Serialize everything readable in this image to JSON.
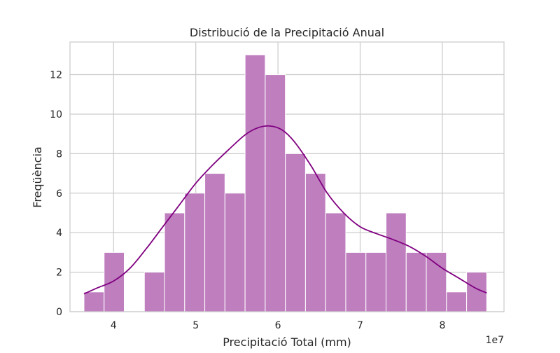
{
  "chart_data": {
    "type": "bar",
    "title": "Distribució de la Precipitació Anual",
    "xlabel": "Precipitació Total (mm)",
    "ylabel": "Freqüència",
    "x_offset_label": "1e7",
    "xlim": [
      3.47,
      8.75
    ],
    "ylim": [
      0,
      13.65
    ],
    "x_ticks": [
      4,
      5,
      6,
      7,
      8
    ],
    "x_tick_labels": [
      "4",
      "5",
      "6",
      "7",
      "8"
    ],
    "y_ticks": [
      0,
      2,
      4,
      6,
      8,
      10,
      12
    ],
    "y_tick_labels": [
      "0",
      "2",
      "4",
      "6",
      "8",
      "10",
      "12"
    ],
    "grid": true,
    "bar_color": "#bf7fbf",
    "bar_edge_color": "#ffffff",
    "kde_color": "#800080",
    "bin_edges": [
      3.64,
      3.885,
      4.13,
      4.375,
      4.62,
      4.865,
      5.11,
      5.355,
      5.6,
      5.845,
      6.09,
      6.335,
      6.58,
      6.825,
      7.07,
      7.315,
      7.56,
      7.805,
      8.05,
      8.295,
      8.54
    ],
    "counts": [
      1,
      3,
      0,
      2,
      5,
      6,
      7,
      6,
      13,
      12,
      8,
      7,
      5,
      3,
      3,
      5,
      3,
      3,
      1,
      2
    ],
    "kde_curve": {
      "x": [
        3.64,
        3.8,
        4.0,
        4.2,
        4.4,
        4.6,
        4.8,
        5.0,
        5.2,
        5.4,
        5.6,
        5.75,
        5.9,
        6.05,
        6.2,
        6.4,
        6.6,
        6.8,
        7.0,
        7.2,
        7.4,
        7.6,
        7.8,
        8.0,
        8.2,
        8.4,
        8.54
      ],
      "y": [
        0.9,
        1.2,
        1.55,
        2.2,
        3.2,
        4.3,
        5.4,
        6.5,
        7.4,
        8.2,
        8.95,
        9.3,
        9.4,
        9.2,
        8.6,
        7.4,
        6.0,
        5.0,
        4.3,
        3.95,
        3.65,
        3.3,
        2.8,
        2.2,
        1.7,
        1.2,
        0.95
      ]
    }
  }
}
